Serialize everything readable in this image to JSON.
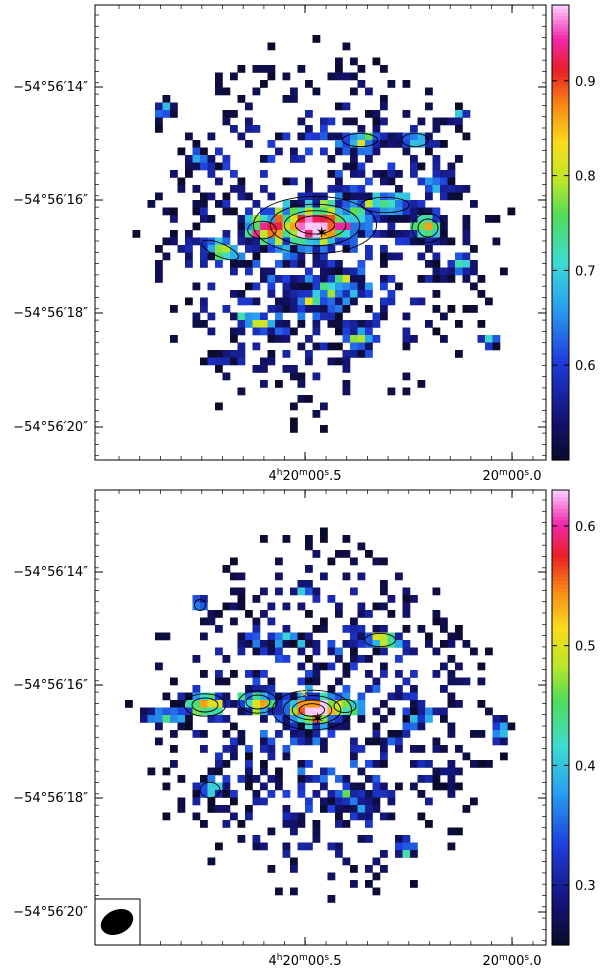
{
  "chart_data": [
    {
      "type": "heatmap",
      "title": "",
      "y_ticks": [
        "−54°56′14″",
        "−54°56′16″",
        "−54°56′18″",
        "−54°56′20″"
      ],
      "x_ticks": [
        {
          "h": "4",
          "hu": "h",
          "m": "20",
          "mu": "m",
          "s": "00",
          "su": "s",
          "frac": ".5"
        },
        {
          "h": "",
          "hu": "",
          "m": "20",
          "mu": "m",
          "s": "00",
          "su": "s",
          "frac": ".0"
        }
      ],
      "colorbar": {
        "ticks": [
          "0.9",
          "0.8",
          "0.7",
          "0.6"
        ],
        "values": [
          0.9,
          0.8,
          0.7,
          0.6
        ],
        "min": 0.5,
        "max": 0.98
      },
      "peaks": [
        {
          "ra_offset_arcsec": 0.3,
          "dec_offset_arcsec": 0.3,
          "value": 0.97
        },
        {
          "ra_offset_arcsec": -1.2,
          "dec_offset_arcsec": -0.3,
          "value": 0.85
        },
        {
          "ra_offset_arcsec": 1.4,
          "dec_offset_arcsec": -0.6,
          "value": 0.75
        },
        {
          "ra_offset_arcsec": 1.0,
          "dec_offset_arcsec": 1.6,
          "value": 0.72
        },
        {
          "ra_offset_arcsec": 0.9,
          "dec_offset_arcsec": -1.8,
          "value": 0.7
        }
      ]
    },
    {
      "type": "heatmap",
      "title": "",
      "y_ticks": [
        "−54°56′14″",
        "−54°56′16″",
        "−54°56′18″",
        "−54°56′20″"
      ],
      "x_ticks": [
        {
          "h": "4",
          "hu": "h",
          "m": "20",
          "mu": "m",
          "s": "00",
          "su": "s",
          "frac": ".5"
        },
        {
          "h": "",
          "hu": "",
          "m": "20",
          "mu": "m",
          "s": "00",
          "su": "s",
          "frac": ".0"
        }
      ],
      "colorbar": {
        "ticks": [
          "0.6",
          "0.5",
          "0.4",
          "0.3"
        ],
        "values": [
          0.6,
          0.5,
          0.4,
          0.3
        ],
        "min": 0.25,
        "max": 0.63
      },
      "peaks": [
        {
          "ra_offset_arcsec": 0.3,
          "dec_offset_arcsec": 0.4,
          "value": 0.6
        },
        {
          "ra_offset_arcsec": 1.6,
          "dec_offset_arcsec": 0.3,
          "value": 0.5
        },
        {
          "ra_offset_arcsec": 0.9,
          "dec_offset_arcsec": 0.3,
          "value": 0.48
        },
        {
          "ra_offset_arcsec": -1.0,
          "dec_offset_arcsec": 1.1,
          "value": 0.42
        }
      ]
    }
  ]
}
